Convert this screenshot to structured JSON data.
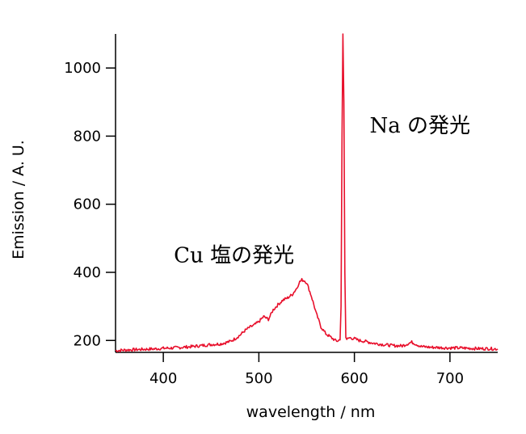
{
  "chart_data": {
    "type": "line",
    "title": "",
    "xlabel": "wavelength / nm",
    "ylabel": "Emission / A. U.",
    "xlim": [
      350,
      750
    ],
    "ylim": [
      165,
      1100
    ],
    "xticks": [
      400,
      500,
      600,
      700
    ],
    "yticks": [
      200,
      400,
      600,
      800,
      1000
    ],
    "grid": false,
    "series_color": "#e8102c",
    "annotations": [
      {
        "text": "Na の発光",
        "x": 616,
        "y": 810
      },
      {
        "text": "Cu 塩の発光",
        "x": 474,
        "y": 430
      }
    ],
    "series": [
      {
        "x": [
          350,
          360,
          370,
          380,
          390,
          400,
          410,
          420,
          430,
          440,
          450,
          460,
          470,
          475,
          480,
          485,
          490,
          495,
          500,
          505,
          510,
          515,
          520,
          525,
          530,
          535,
          540,
          542,
          545,
          548,
          550,
          555,
          560,
          565,
          570,
          575,
          580,
          583,
          585,
          586,
          587,
          588,
          589,
          590,
          591,
          592,
          593,
          595,
          600,
          605,
          610,
          620,
          630,
          640,
          650,
          660,
          670,
          680,
          690,
          700,
          710,
          720,
          730,
          740,
          750
        ],
        "y": [
          170,
          172,
          173,
          174,
          175,
          177,
          178,
          180,
          182,
          185,
          188,
          190,
          197,
          205,
          215,
          228,
          238,
          245,
          255,
          270,
          262,
          290,
          305,
          318,
          325,
          335,
          355,
          370,
          378,
          375,
          370,
          330,
          280,
          240,
          220,
          210,
          200,
          198,
          205,
          300,
          800,
          1100,
          900,
          400,
          210,
          200,
          205,
          208,
          205,
          200,
          198,
          192,
          188,
          185,
          184,
          195,
          182,
          180,
          179,
          178,
          178,
          177,
          176,
          176,
          175
        ]
      }
    ]
  }
}
